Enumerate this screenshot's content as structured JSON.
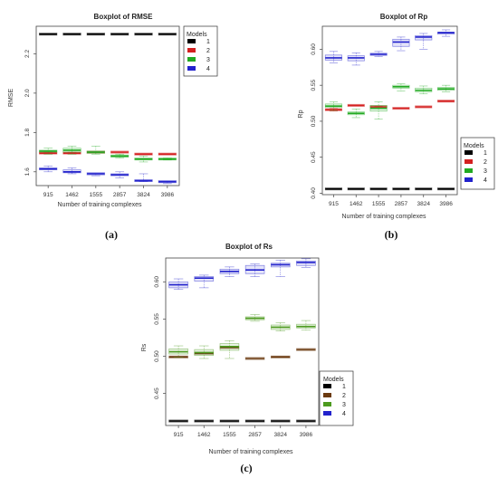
{
  "chart_data": [
    {
      "type": "boxplot",
      "title": "Boxplot of RMSE",
      "caption": "(a)",
      "xlabel": "Number of training complexes",
      "ylabel": "RMSE",
      "categories": [
        "915",
        "1462",
        "1555",
        "2857",
        "3824",
        "3986"
      ],
      "ylim": [
        1.53,
        2.34
      ],
      "yticks": [
        1.6,
        1.8,
        2.0,
        2.2
      ],
      "legend_title": "Models",
      "legend_position": "top-right",
      "series": [
        {
          "name": "1",
          "color": "#000000",
          "boxes": [
            [
              2.3,
              2.3,
              2.3,
              2.3,
              2.3
            ],
            [
              2.3,
              2.3,
              2.3,
              2.3,
              2.3
            ],
            [
              2.3,
              2.3,
              2.3,
              2.3,
              2.3
            ],
            [
              2.3,
              2.3,
              2.3,
              2.3,
              2.3
            ],
            [
              2.3,
              2.3,
              2.3,
              2.3,
              2.3
            ],
            [
              2.3,
              2.3,
              2.3,
              2.3,
              2.3
            ]
          ]
        },
        {
          "name": "2",
          "color": "#d42020",
          "boxes": [
            [
              1.69,
              1.69,
              1.695,
              1.7,
              1.7
            ],
            [
              1.69,
              1.69,
              1.695,
              1.7,
              1.7
            ],
            [
              1.7,
              1.7,
              1.7,
              1.7,
              1.7
            ],
            [
              1.7,
              1.7,
              1.7,
              1.7,
              1.7
            ],
            [
              1.69,
              1.69,
              1.69,
              1.69,
              1.69
            ],
            [
              1.69,
              1.69,
              1.69,
              1.69,
              1.69
            ]
          ]
        },
        {
          "name": "3",
          "color": "#22aa22",
          "boxes": [
            [
              1.69,
              1.7,
              1.705,
              1.71,
              1.72
            ],
            [
              1.69,
              1.7,
              1.71,
              1.72,
              1.73
            ],
            [
              1.69,
              1.7,
              1.7,
              1.7,
              1.73
            ],
            [
              1.67,
              1.68,
              1.68,
              1.68,
              1.69
            ],
            [
              1.65,
              1.66,
              1.665,
              1.67,
              1.68
            ],
            [
              1.66,
              1.66,
              1.665,
              1.67,
              1.67
            ]
          ]
        },
        {
          "name": "4",
          "color": "#2222cc",
          "boxes": [
            [
              1.6,
              1.61,
              1.615,
              1.62,
              1.63
            ],
            [
              1.59,
              1.595,
              1.6,
              1.61,
              1.62
            ],
            [
              1.58,
              1.585,
              1.59,
              1.59,
              1.59
            ],
            [
              1.57,
              1.58,
              1.585,
              1.59,
              1.6
            ],
            [
              1.55,
              1.55,
              1.555,
              1.56,
              1.59
            ],
            [
              1.54,
              1.545,
              1.55,
              1.55,
              1.55
            ]
          ]
        }
      ]
    },
    {
      "type": "boxplot",
      "title": "Boxplot of Rp",
      "caption": "(b)",
      "xlabel": "Number of training complexes",
      "ylabel": "Rp",
      "categories": [
        "915",
        "1462",
        "1555",
        "2857",
        "3824",
        "3986"
      ],
      "ylim": [
        0.398,
        0.632
      ],
      "yticks": [
        0.4,
        0.45,
        0.5,
        0.55,
        0.6
      ],
      "legend_title": "Models",
      "legend_position": "bottom-right",
      "series": [
        {
          "name": "1",
          "color": "#000000",
          "boxes": [
            [
              0.406,
              0.406,
              0.406,
              0.406,
              0.406
            ],
            [
              0.406,
              0.406,
              0.406,
              0.406,
              0.406
            ],
            [
              0.406,
              0.406,
              0.406,
              0.406,
              0.406
            ],
            [
              0.406,
              0.406,
              0.406,
              0.406,
              0.406
            ],
            [
              0.406,
              0.406,
              0.406,
              0.406,
              0.406
            ],
            [
              0.406,
              0.406,
              0.406,
              0.406,
              0.406
            ]
          ]
        },
        {
          "name": "2",
          "color": "#d42020",
          "boxes": [
            [
              0.514,
              0.515,
              0.516,
              0.517,
              0.518
            ],
            [
              0.522,
              0.522,
              0.522,
              0.522,
              0.522
            ],
            [
              0.52,
              0.52,
              0.52,
              0.521,
              0.521
            ],
            [
              0.518,
              0.518,
              0.518,
              0.518,
              0.518
            ],
            [
              0.52,
              0.52,
              0.52,
              0.52,
              0.52
            ],
            [
              0.528,
              0.528,
              0.528,
              0.528,
              0.528
            ]
          ]
        },
        {
          "name": "3",
          "color": "#22aa22",
          "boxes": [
            [
              0.515,
              0.519,
              0.521,
              0.524,
              0.527
            ],
            [
              0.505,
              0.509,
              0.511,
              0.513,
              0.517
            ],
            [
              0.503,
              0.514,
              0.518,
              0.522,
              0.527
            ],
            [
              0.542,
              0.546,
              0.548,
              0.55,
              0.552
            ],
            [
              0.538,
              0.541,
              0.543,
              0.546,
              0.549
            ],
            [
              0.541,
              0.543,
              0.545,
              0.547,
              0.55
            ]
          ]
        },
        {
          "name": "4",
          "color": "#2222cc",
          "boxes": [
            [
              0.581,
              0.585,
              0.588,
              0.592,
              0.597
            ],
            [
              0.578,
              0.584,
              0.588,
              0.591,
              0.595
            ],
            [
              0.59,
              0.592,
              0.593,
              0.594,
              0.597
            ],
            [
              0.598,
              0.604,
              0.61,
              0.614,
              0.617
            ],
            [
              0.6,
              0.613,
              0.617,
              0.619,
              0.622
            ],
            [
              0.618,
              0.621,
              0.623,
              0.624,
              0.627
            ]
          ]
        }
      ]
    },
    {
      "type": "boxplot",
      "title": "Boxplot of Rs",
      "caption": "(c)",
      "xlabel": "Number of training complexes",
      "ylabel": "Rs",
      "categories": [
        "915",
        "1462",
        "1555",
        "2857",
        "3824",
        "3986"
      ],
      "ylim": [
        0.407,
        0.632
      ],
      "yticks": [
        0.45,
        0.5,
        0.55,
        0.6
      ],
      "legend_title": "Models",
      "legend_position": "bottom-right",
      "series": [
        {
          "name": "1",
          "color": "#000000",
          "boxes": [
            [
              0.413,
              0.413,
              0.413,
              0.413,
              0.413
            ],
            [
              0.413,
              0.413,
              0.413,
              0.413,
              0.413
            ],
            [
              0.413,
              0.413,
              0.413,
              0.413,
              0.413
            ],
            [
              0.413,
              0.413,
              0.413,
              0.413,
              0.413
            ],
            [
              0.413,
              0.413,
              0.413,
              0.413,
              0.413
            ],
            [
              0.413,
              0.413,
              0.413,
              0.413,
              0.413
            ]
          ]
        },
        {
          "name": "2",
          "color": "#6b3a10",
          "boxes": [
            [
              0.499,
              0.499,
              0.499,
              0.499,
              0.499
            ],
            [
              0.504,
              0.504,
              0.504,
              0.504,
              0.504
            ],
            [
              0.512,
              0.512,
              0.512,
              0.512,
              0.512
            ],
            [
              0.497,
              0.497,
              0.497,
              0.497,
              0.497
            ],
            [
              0.499,
              0.499,
              0.499,
              0.499,
              0.499
            ],
            [
              0.509,
              0.509,
              0.509,
              0.509,
              0.509
            ]
          ]
        },
        {
          "name": "3",
          "color": "#4c9a1e",
          "boxes": [
            [
              0.499,
              0.503,
              0.506,
              0.51,
              0.514
            ],
            [
              0.497,
              0.501,
              0.505,
              0.509,
              0.514
            ],
            [
              0.497,
              0.508,
              0.513,
              0.517,
              0.521
            ],
            [
              0.547,
              0.549,
              0.551,
              0.553,
              0.556
            ],
            [
              0.534,
              0.536,
              0.539,
              0.542,
              0.545
            ],
            [
              0.535,
              0.538,
              0.54,
              0.543,
              0.548
            ]
          ]
        },
        {
          "name": "4",
          "color": "#2222cc",
          "boxes": [
            [
              0.59,
              0.592,
              0.596,
              0.6,
              0.604
            ],
            [
              0.592,
              0.601,
              0.605,
              0.607,
              0.609
            ],
            [
              0.607,
              0.611,
              0.614,
              0.617,
              0.62
            ],
            [
              0.607,
              0.611,
              0.616,
              0.622,
              0.624
            ],
            [
              0.607,
              0.62,
              0.623,
              0.625,
              0.629
            ],
            [
              0.619,
              0.622,
              0.626,
              0.628,
              0.631
            ]
          ]
        }
      ]
    }
  ]
}
